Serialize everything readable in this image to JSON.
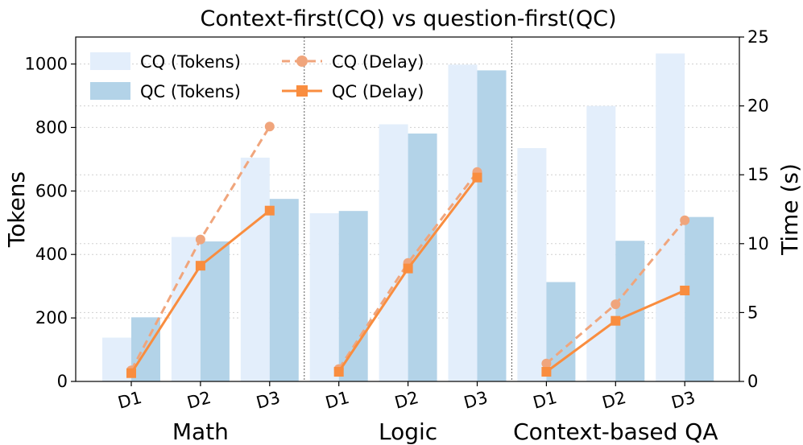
{
  "chart_data": {
    "type": "bar",
    "title": "Context-first(CQ) vs question-first(QC)",
    "ylabel": "Tokens",
    "y2label": "Time (s)",
    "ylim": [
      0,
      1085
    ],
    "y2lim": [
      0,
      25
    ],
    "yticks": [
      0,
      200,
      400,
      600,
      800,
      1000
    ],
    "y2ticks": [
      0,
      5,
      10,
      15,
      20,
      25
    ],
    "grid": true,
    "legend_position": "top-left",
    "groups": [
      "Math",
      "Logic",
      "Context-based QA"
    ],
    "categories": [
      "D1",
      "D2",
      "D3",
      "D1",
      "D2",
      "D3",
      "D1",
      "D2",
      "D3"
    ],
    "series": [
      {
        "name": "CQ (Tokens)",
        "kind": "bar",
        "axis": "left",
        "color": "#e3eefb",
        "values": [
          138,
          455,
          705,
          530,
          810,
          998,
          735,
          868,
          1033
        ]
      },
      {
        "name": "QC (Tokens)",
        "kind": "bar",
        "axis": "left",
        "color": "#b3d3e8",
        "values": [
          202,
          441,
          575,
          537,
          781,
          980,
          313,
          443,
          518
        ]
      },
      {
        "name": "CQ (Delay)",
        "kind": "line",
        "axis": "right",
        "color": "#f0a57c",
        "dashed": true,
        "marker": "circle",
        "values": [
          0.8,
          10.3,
          18.5,
          0.9,
          8.6,
          15.2,
          1.3,
          5.6,
          11.7
        ]
      },
      {
        "name": "QC (Delay)",
        "kind": "line",
        "axis": "right",
        "color": "#f98d3f",
        "dashed": false,
        "marker": "square",
        "values": [
          0.6,
          8.4,
          12.4,
          0.7,
          8.2,
          14.8,
          0.7,
          4.4,
          6.6
        ]
      }
    ]
  }
}
